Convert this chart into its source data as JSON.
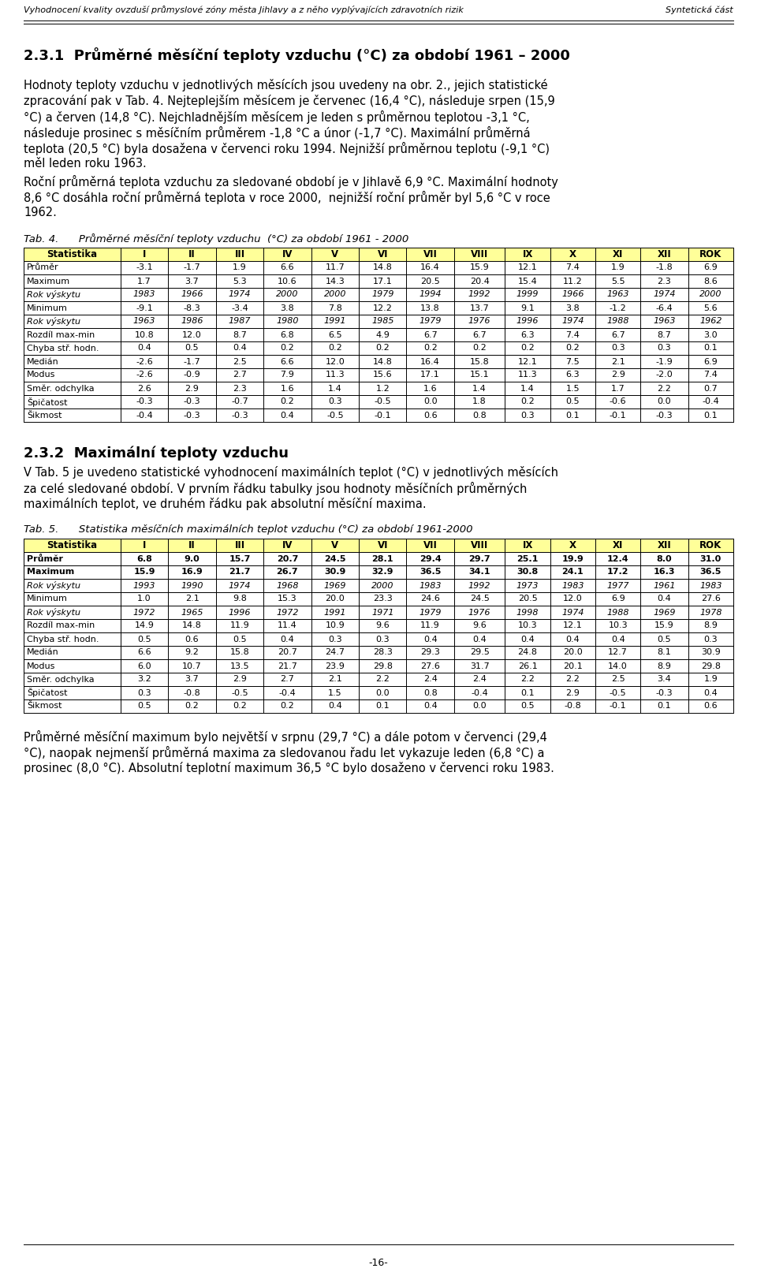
{
  "header_left": "Vyhodnocení kvality ovzduší průmyslové zóny města Jihlavy a z něho vyplývajících zdravotních rizik",
  "header_right": "Syntetická část",
  "section_title": "2.3.1  Průměrné měsíční teploty vzduchu (°C) za období 1961 – 2000",
  "para1_lines": [
    "Hodnoty teploty vzduchu v jednotlivých měsících jsou uvedeny na obr. 2., jejich statistické",
    "zpracování pak v Tab. 4. Nejteplejším měsícem je červenec (16,4 °C), následuje srpen (15,9",
    "°C) a červen (14,8 °C). Nejchladnějším měsícem je leden s průměrnou teplotou -3,1 °C,",
    "následuje prosinec s měsíčním průměrem -1,8 °C a únor (-1,7 °C). Maximální průměrná",
    "teplota (20,5 °C) byla dosažena v červenci roku 1994. Nejnižší průměrnou teplotu (-9,1 °C)",
    "měl leden roku 1963."
  ],
  "para2_lines": [
    "Roční průměrná teplota vzduchu za sledované období je v Jihlavě 6,9 °C. Maximální hodnoty",
    "8,6 °C dosáhla roční průměrná teplota v roce 2000,  nejnižší roční průměr byl 5,6 °C v roce",
    "1962."
  ],
  "tab4_caption": "Tab. 4.      Průměrné měsíční teploty vzduchu  (°C) za období 1961 - 2000",
  "tab4_headers": [
    "Statistika",
    "I",
    "II",
    "III",
    "IV",
    "V",
    "VI",
    "VII",
    "VIII",
    "IX",
    "X",
    "XI",
    "XII",
    "ROK"
  ],
  "tab4_data": [
    [
      "Průměr",
      "-3.1",
      "-1.7",
      "1.9",
      "6.6",
      "11.7",
      "14.8",
      "16.4",
      "15.9",
      "12.1",
      "7.4",
      "1.9",
      "-1.8",
      "6.9"
    ],
    [
      "Maximum",
      "1.7",
      "3.7",
      "5.3",
      "10.6",
      "14.3",
      "17.1",
      "20.5",
      "20.4",
      "15.4",
      "11.2",
      "5.5",
      "2.3",
      "8.6"
    ],
    [
      "Rok výskytu",
      "1983",
      "1966",
      "1974",
      "2000",
      "2000",
      "1979",
      "1994",
      "1992",
      "1999",
      "1966",
      "1963",
      "1974",
      "2000"
    ],
    [
      "Minimum",
      "-9.1",
      "-8.3",
      "-3.4",
      "3.8",
      "7.8",
      "12.2",
      "13.8",
      "13.7",
      "9.1",
      "3.8",
      "-1.2",
      "-6.4",
      "5.6"
    ],
    [
      "Rok výskytu",
      "1963",
      "1986",
      "1987",
      "1980",
      "1991",
      "1985",
      "1979",
      "1976",
      "1996",
      "1974",
      "1988",
      "1963",
      "1962"
    ],
    [
      "Rozdíl max-min",
      "10.8",
      "12.0",
      "8.7",
      "6.8",
      "6.5",
      "4.9",
      "6.7",
      "6.7",
      "6.3",
      "7.4",
      "6.7",
      "8.7",
      "3.0"
    ],
    [
      "Chyba stř. hodn.",
      "0.4",
      "0.5",
      "0.4",
      "0.2",
      "0.2",
      "0.2",
      "0.2",
      "0.2",
      "0.2",
      "0.2",
      "0.3",
      "0.3",
      "0.1"
    ],
    [
      "Medián",
      "-2.6",
      "-1.7",
      "2.5",
      "6.6",
      "12.0",
      "14.8",
      "16.4",
      "15.8",
      "12.1",
      "7.5",
      "2.1",
      "-1.9",
      "6.9"
    ],
    [
      "Modus",
      "-2.6",
      "-0.9",
      "2.7",
      "7.9",
      "11.3",
      "15.6",
      "17.1",
      "15.1",
      "11.3",
      "6.3",
      "2.9",
      "-2.0",
      "7.4"
    ],
    [
      "Směr. odchylka",
      "2.6",
      "2.9",
      "2.3",
      "1.6",
      "1.4",
      "1.2",
      "1.6",
      "1.4",
      "1.4",
      "1.5",
      "1.7",
      "2.2",
      "0.7"
    ],
    [
      "Špičatost",
      "-0.3",
      "-0.3",
      "-0.7",
      "0.2",
      "0.3",
      "-0.5",
      "0.0",
      "1.8",
      "0.2",
      "0.5",
      "-0.6",
      "0.0",
      "-0.4"
    ],
    [
      "Šikmost",
      "-0.4",
      "-0.3",
      "-0.3",
      "0.4",
      "-0.5",
      "-0.1",
      "0.6",
      "0.8",
      "0.3",
      "0.1",
      "-0.1",
      "-0.3",
      "0.1"
    ]
  ],
  "tab4_italic_rows": [
    2,
    4
  ],
  "section2_title": "2.3.2  Maximální teploty vzduchu",
  "para3_lines": [
    "V Tab. 5 je uvedeno statistické vyhodnocení maximálních teplot (°C) v jednotlivých měsících",
    "za celé sledované období. V prvním řádku tabulky jsou hodnoty měsíčních průměrných",
    "maximálních teplot, ve druhém řádku pak absolutní měsíční maxima."
  ],
  "tab5_caption": "Tab. 5.      Statistika měsíčních maximálních teplot vzduchu (°C) za období 1961-2000",
  "tab5_headers": [
    "Statistika",
    "I",
    "II",
    "III",
    "IV",
    "V",
    "VI",
    "VII",
    "VIII",
    "IX",
    "X",
    "XI",
    "XII",
    "ROK"
  ],
  "tab5_data": [
    [
      "Průměr",
      "6.8",
      "9.0",
      "15.7",
      "20.7",
      "24.5",
      "28.1",
      "29.4",
      "29.7",
      "25.1",
      "19.9",
      "12.4",
      "8.0",
      "31.0"
    ],
    [
      "Maximum",
      "15.9",
      "16.9",
      "21.7",
      "26.7",
      "30.9",
      "32.9",
      "36.5",
      "34.1",
      "30.8",
      "24.1",
      "17.2",
      "16.3",
      "36.5"
    ],
    [
      "Rok výskytu",
      "1993",
      "1990",
      "1974",
      "1968",
      "1969",
      "2000",
      "1983",
      "1992",
      "1973",
      "1983",
      "1977",
      "1961",
      "1983"
    ],
    [
      "Minimum",
      "1.0",
      "2.1",
      "9.8",
      "15.3",
      "20.0",
      "23.3",
      "24.6",
      "24.5",
      "20.5",
      "12.0",
      "6.9",
      "0.4",
      "27.6"
    ],
    [
      "Rok výskytu",
      "1972",
      "1965",
      "1996",
      "1972",
      "1991",
      "1971",
      "1979",
      "1976",
      "1998",
      "1974",
      "1988",
      "1969",
      "1978"
    ],
    [
      "Rozdíl max-min",
      "14.9",
      "14.8",
      "11.9",
      "11.4",
      "10.9",
      "9.6",
      "11.9",
      "9.6",
      "10.3",
      "12.1",
      "10.3",
      "15.9",
      "8.9"
    ],
    [
      "Chyba stř. hodn.",
      "0.5",
      "0.6",
      "0.5",
      "0.4",
      "0.3",
      "0.3",
      "0.4",
      "0.4",
      "0.4",
      "0.4",
      "0.4",
      "0.5",
      "0.3"
    ],
    [
      "Medián",
      "6.6",
      "9.2",
      "15.8",
      "20.7",
      "24.7",
      "28.3",
      "29.3",
      "29.5",
      "24.8",
      "20.0",
      "12.7",
      "8.1",
      "30.9"
    ],
    [
      "Modus",
      "6.0",
      "10.7",
      "13.5",
      "21.7",
      "23.9",
      "29.8",
      "27.6",
      "31.7",
      "26.1",
      "20.1",
      "14.0",
      "8.9",
      "29.8"
    ],
    [
      "Směr. odchylka",
      "3.2",
      "3.7",
      "2.9",
      "2.7",
      "2.1",
      "2.2",
      "2.4",
      "2.4",
      "2.2",
      "2.2",
      "2.5",
      "3.4",
      "1.9"
    ],
    [
      "Špičatost",
      "0.3",
      "-0.8",
      "-0.5",
      "-0.4",
      "1.5",
      "0.0",
      "0.8",
      "-0.4",
      "0.1",
      "2.9",
      "-0.5",
      "-0.3",
      "0.4"
    ],
    [
      "Šikmost",
      "0.5",
      "0.2",
      "0.2",
      "0.2",
      "0.4",
      "0.1",
      "0.4",
      "0.0",
      "0.5",
      "-0.8",
      "-0.1",
      "0.1",
      "0.6"
    ]
  ],
  "tab5_bold_rows": [
    0,
    1
  ],
  "tab5_italic_rows": [
    2,
    4
  ],
  "para4_lines": [
    "Průměrné měsíční maximum bylo největší v srpnu (29,7 °C) a dále potom v červenci (29,4",
    "°C), naopak nejmenší průměrná maxima za sledovanou řadu let vykazuje leden (6,8 °C) a",
    "prosinec (8,0 °C). Absolutní teplotní maximum 36,5 °C bylo dosaženo v červenci roku 1983."
  ],
  "footer": "-16-",
  "table_header_bg": "#FFFF99",
  "background_color": "#FFFFFF",
  "col_widths_raw": [
    118,
    58,
    58,
    58,
    58,
    58,
    58,
    58,
    62,
    55,
    55,
    55,
    58,
    55
  ]
}
